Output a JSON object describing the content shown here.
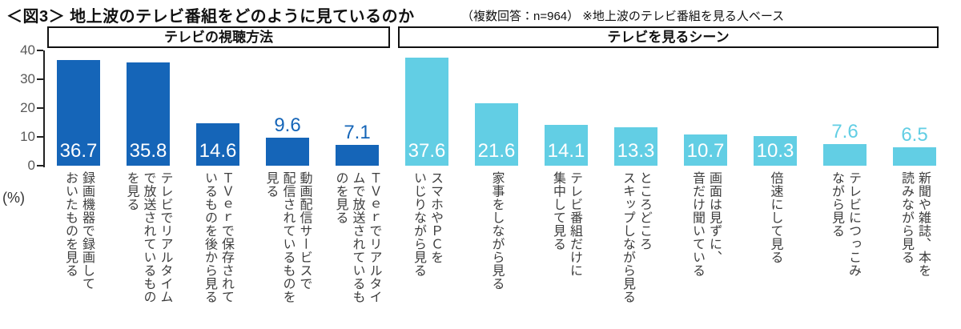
{
  "title": "＜図3＞ 地上波のテレビ番組をどのように見ているのか",
  "subtitle": "（複数回答：n=964） ※地上波のテレビ番組を見る人ベース",
  "unit_label": "(%)",
  "y_axis": {
    "ticks": [
      40,
      30,
      20,
      10,
      0
    ],
    "max": 40,
    "grid": false
  },
  "colors": {
    "group1_bar": "#1565b8",
    "group2_bar": "#62cee4",
    "axis_text": "#595959",
    "value_inside": "#ffffff",
    "label_text": "#3d3d3d"
  },
  "chart_data": {
    "type": "bar",
    "title": "地上波のテレビ番組をどのように見ているのか",
    "ylabel": "(%)",
    "ylim": [
      0,
      40
    ],
    "legend_position": "none",
    "groups": [
      {
        "name": "テレビの視聴方法",
        "color": "#1565b8",
        "items": [
          {
            "label": "録画機器で録画して\nおいたものを見る",
            "value": 36.7
          },
          {
            "label": "テレビでリアルタイム\nで放送されているもの\nを見る",
            "value": 35.8
          },
          {
            "label": "ＴＶｅｒで保存されて\nいるものを後から見る",
            "value": 14.6
          },
          {
            "label": "動画配信サービスで\n配信されているものを\n見る",
            "value": 9.6
          },
          {
            "label": "ＴＶｅｒでリアルタイ\nムで放送されているも\nのを見る",
            "value": 7.1
          }
        ]
      },
      {
        "name": "テレビを見るシーン",
        "color": "#62cee4",
        "items": [
          {
            "label": "スマホやＰＣを\nいじりながら見る",
            "value": 37.6
          },
          {
            "label": "家事をしながら見る",
            "value": 21.6
          },
          {
            "label": "テレビ番組だけに\n集中して見る",
            "value": 14.1
          },
          {
            "label": "ところどころ\nスキップしながら見る",
            "value": 13.3
          },
          {
            "label": "画面は見ずに、\n音だけ聞いている",
            "value": 10.7
          },
          {
            "label": "倍速にして見る",
            "value": 10.3
          },
          {
            "label": "テレビにつっこみ\nながら見る",
            "value": 7.6
          },
          {
            "label": "新聞や雑誌、本を\n読みながら見る",
            "value": 6.5
          }
        ]
      }
    ]
  }
}
